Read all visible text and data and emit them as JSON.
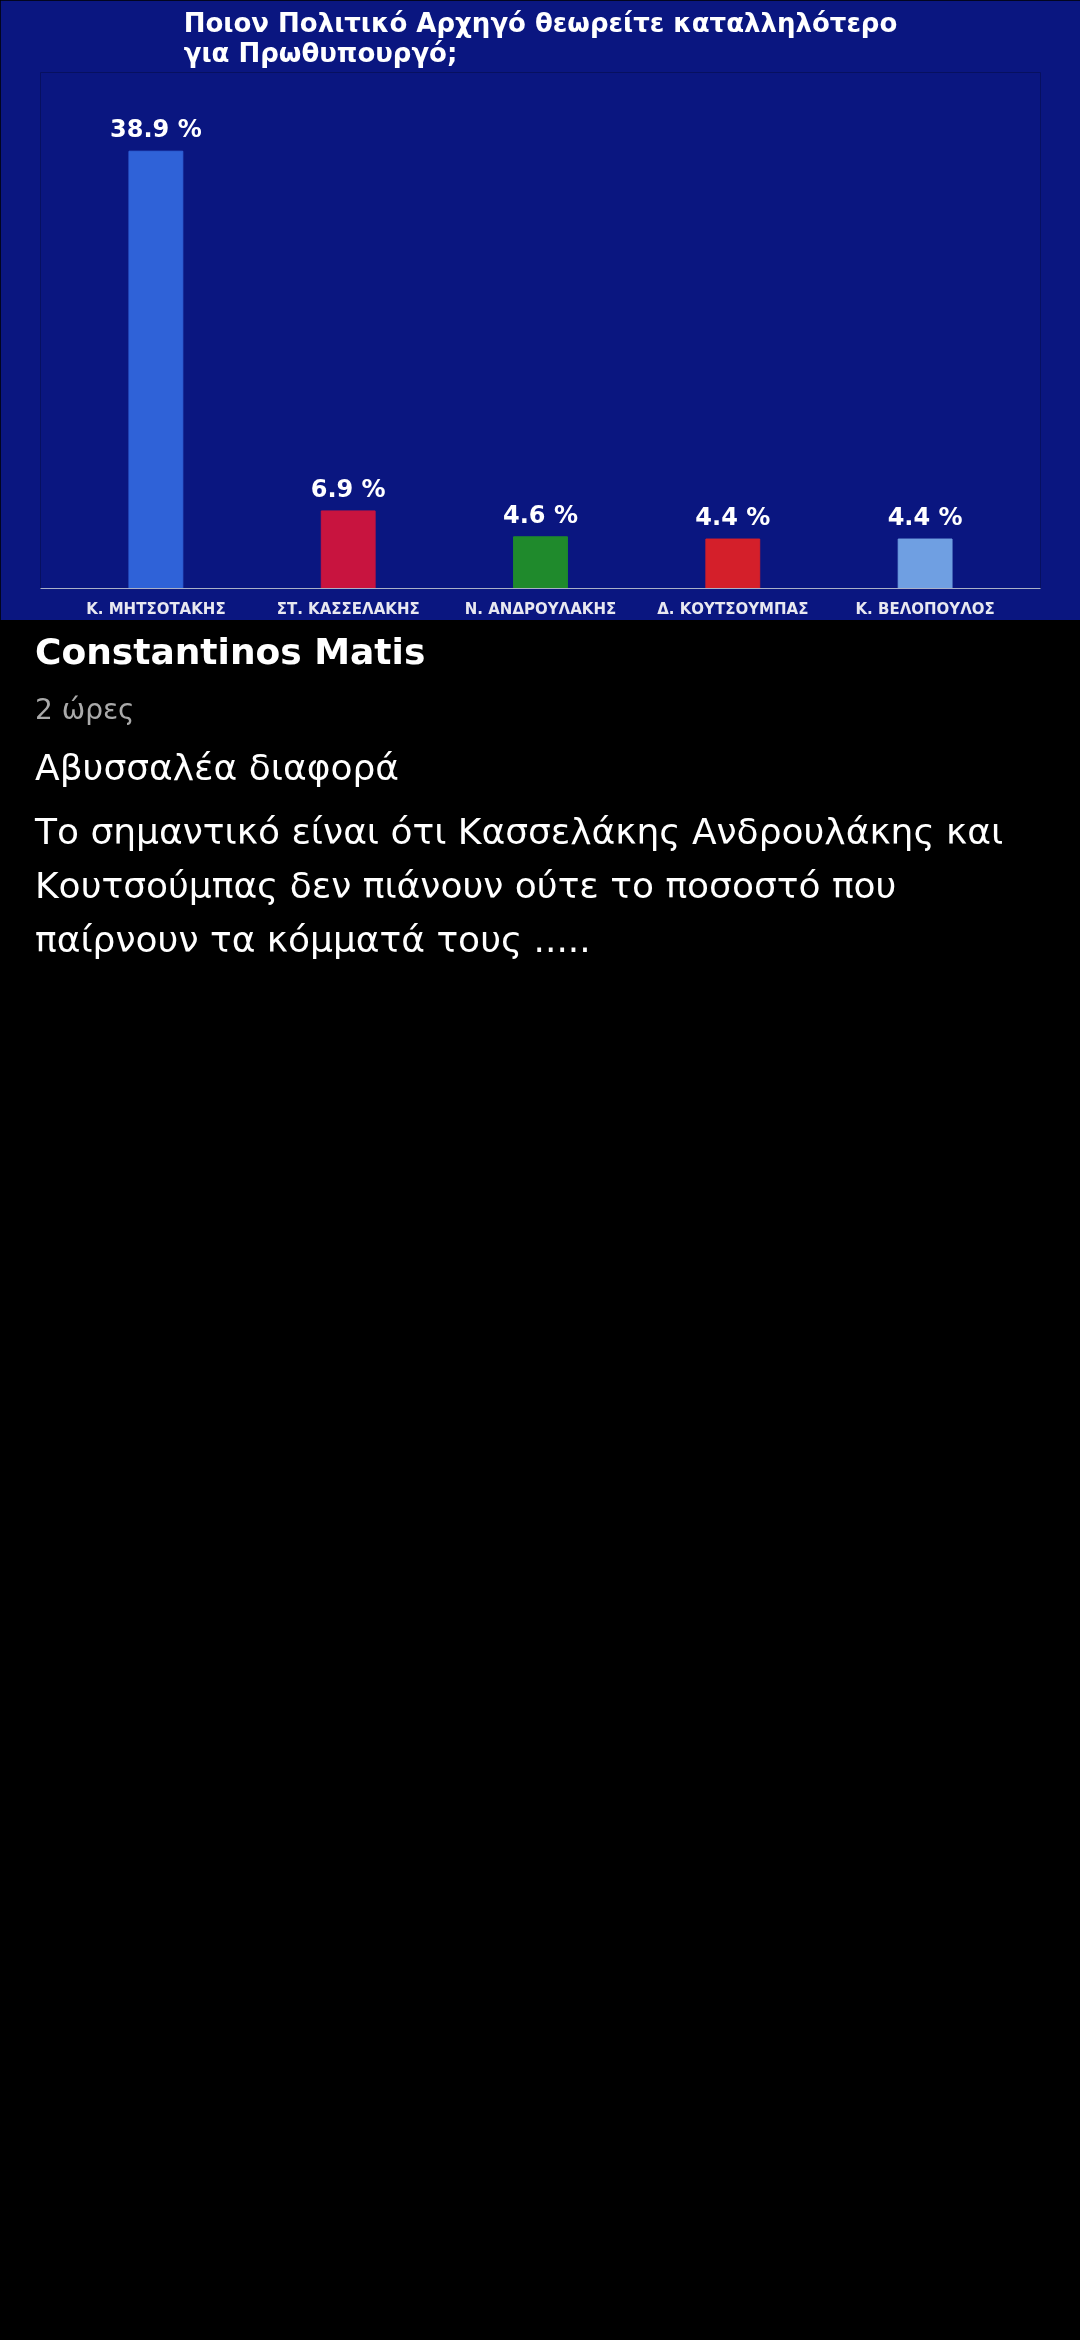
{
  "chart_data": {
    "type": "bar",
    "title": "Ποιον Πολιτικό Αρχηγό θεωρείτε καταλληλότερο\nγια Πρωθυπουργό;",
    "categories": [
      "Κ. ΜΗΤΣΟΤΑΚΗΣ",
      "ΣΤ. ΚΑΣΣΕΛΑΚΗΣ",
      "Ν. ΑΝΔΡΟΥΛΑΚΗΣ",
      "Δ. ΚΟΥΤΣΟΥΜΠΑΣ",
      "Κ. ΒΕΛΟΠΟΥΛΟΣ"
    ],
    "values": [
      38.9,
      6.9,
      4.6,
      4.4,
      4.4
    ],
    "colors": [
      "#2f62d8",
      "#c8143f",
      "#1f8a2c",
      "#d41f2a",
      "#6f9fe2"
    ],
    "value_labels": [
      "38.9 %",
      "6.9 %",
      "4.6 %",
      "4.4 %",
      "4.4 %"
    ],
    "grid": false,
    "annotations": [
      "Constantinos Matis",
      "2 ώρες",
      "Αβυσσαλέα διαφορά",
      "Το σημαντικό είναι ότι Κασσελάκης Ανδρουλάκης και Κουτσούμπας δεν πιάνουν ούτε το ποσοστό που παίρνουν τα κόμματά τους ....."
    ]
  }
}
